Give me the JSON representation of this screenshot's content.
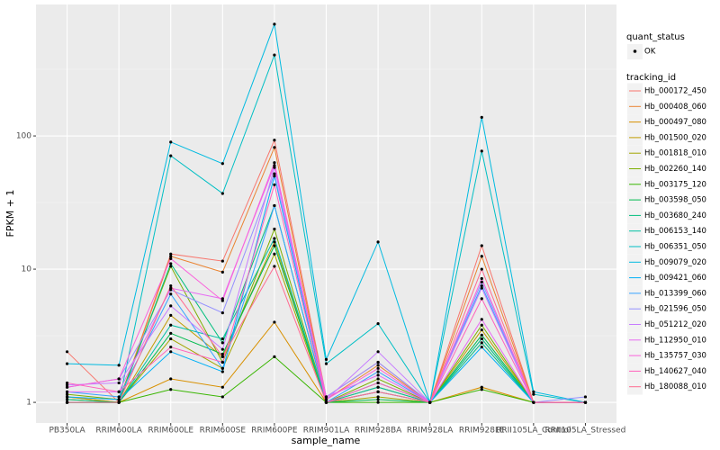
{
  "chart_data": {
    "type": "line",
    "x_label": "sample_name",
    "y_label": "FPKM + 1",
    "log_scale": true,
    "grid": true,
    "ylim": [
      0.7,
      970
    ],
    "yticks": [
      1,
      10,
      100
    ],
    "shape_legend_title": "quant_status",
    "shape_legend_entries": [
      "OK"
    ],
    "color_legend_title": "tracking_id",
    "categories": [
      "PB350LA",
      "RRIM600LA",
      "RRIM600LE",
      "RRIM600SE",
      "RRIM600PE",
      "RRIM901LA",
      "RRIM928BA",
      "RRIM928LA",
      "RRIM928LE",
      "RRII105LA_Control",
      "RRII105LA_Stressed"
    ],
    "series": [
      {
        "name": "Hb_000172_450",
        "color": "#F8766D",
        "values": [
          2.4,
          1.0,
          13,
          11.5,
          93,
          1.1,
          2.0,
          1,
          15,
          1,
          1
        ]
      },
      {
        "name": "Hb_000408_060",
        "color": "#EA8331",
        "values": [
          1.1,
          1.0,
          12.5,
          9.5,
          82,
          1.05,
          1.9,
          1,
          12.5,
          1,
          1
        ]
      },
      {
        "name": "Hb_000497_080",
        "color": "#D89000",
        "values": [
          1.05,
          1.0,
          1.5,
          1.3,
          4.0,
          1.0,
          1.2,
          1,
          1.3,
          1,
          1
        ]
      },
      {
        "name": "Hb_001500_020",
        "color": "#C09B00",
        "values": [
          1.1,
          1.0,
          4.5,
          2.2,
          16,
          1.0,
          1.3,
          1,
          3.5,
          1,
          1
        ]
      },
      {
        "name": "Hb_001818_010",
        "color": "#A3A500",
        "values": [
          1.0,
          1.0,
          3.0,
          1.8,
          13,
          1.0,
          1.1,
          1,
          3,
          1,
          1
        ]
      },
      {
        "name": "Hb_002260_140",
        "color": "#7CAE00",
        "values": [
          1.15,
          1.05,
          10.5,
          2.0,
          20,
          1.0,
          1.5,
          1,
          3.8,
          1,
          1
        ]
      },
      {
        "name": "Hb_003175_120",
        "color": "#39B600",
        "values": [
          1.0,
          1.0,
          1.25,
          1.1,
          2.2,
          1.0,
          1.0,
          1,
          1.25,
          1,
          1
        ]
      },
      {
        "name": "Hb_003598_050",
        "color": "#00BB4E",
        "values": [
          1.0,
          1.0,
          3.3,
          2.3,
          15,
          1.0,
          1.05,
          1,
          3.2,
          1,
          1
        ]
      },
      {
        "name": "Hb_003680_240",
        "color": "#00BF7D",
        "values": [
          1.05,
          1.0,
          11,
          2.8,
          30,
          1.0,
          1.4,
          1,
          2.8,
          1,
          1
        ]
      },
      {
        "name": "Hb_006153_140",
        "color": "#00C1A3",
        "values": [
          1.0,
          1.0,
          3.8,
          3.0,
          17,
          1.0,
          1.3,
          1,
          3.0,
          1,
          1
        ]
      },
      {
        "name": "Hb_006351_050",
        "color": "#00BFC4",
        "values": [
          1.0,
          1.0,
          71,
          37,
          405,
          1.95,
          3.9,
          1.0,
          77,
          1.15,
          1.0
        ]
      },
      {
        "name": "Hb_009079_020",
        "color": "#00BAE0",
        "values": [
          1.95,
          1.9,
          90,
          62,
          690,
          2.1,
          16,
          1,
          138,
          1.2,
          1.0
        ]
      },
      {
        "name": "Hb_009421_060",
        "color": "#00B0F6",
        "values": [
          1.1,
          1.05,
          2.4,
          1.7,
          50,
          1.0,
          1.2,
          1,
          2.6,
          1,
          1
        ]
      },
      {
        "name": "Hb_013399_060",
        "color": "#35A2FF",
        "values": [
          1.2,
          1.1,
          6.5,
          1.8,
          30,
          1.0,
          1.7,
          1,
          7.5,
          1,
          1
        ]
      },
      {
        "name": "Hb_021596_050",
        "color": "#9590FF",
        "values": [
          1.3,
          1.5,
          7.0,
          4.7,
          52,
          1.1,
          2.0,
          1,
          8.0,
          1,
          1.1
        ]
      },
      {
        "name": "Hb_051212_020",
        "color": "#C77CFF",
        "values": [
          1.35,
          1.4,
          5.3,
          2.5,
          58,
          1.05,
          2.4,
          1,
          7.2,
          1,
          1
        ]
      },
      {
        "name": "Hb_112950_010",
        "color": "#E76BF3",
        "values": [
          1.2,
          1.2,
          7.2,
          6.0,
          60,
          1.1,
          1.6,
          1,
          4.2,
          1,
          1
        ]
      },
      {
        "name": "Hb_135757_030",
        "color": "#FA62DB",
        "values": [
          1.3,
          1.5,
          12,
          5.8,
          63,
          1.05,
          1.8,
          1,
          8.5,
          1,
          1
        ]
      },
      {
        "name": "Hb_140627_040",
        "color": "#FF62BC",
        "values": [
          1.4,
          1.2,
          2.6,
          2.0,
          43,
          1.0,
          1.4,
          1,
          6.0,
          1,
          1
        ]
      },
      {
        "name": "Hb_180088_010",
        "color": "#FF6C91",
        "values": [
          1.0,
          1.0,
          7.5,
          2.2,
          10.5,
          1.0,
          1.2,
          1,
          10,
          1,
          1
        ]
      }
    ]
  }
}
